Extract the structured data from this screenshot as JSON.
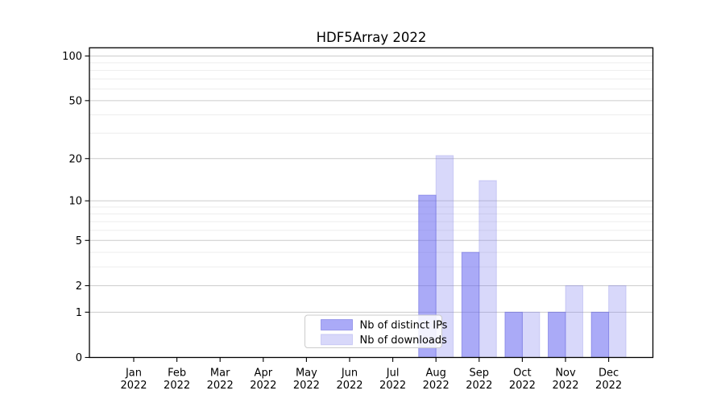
{
  "figure": {
    "background": "#ffffff"
  },
  "chart_data": {
    "type": "bar",
    "title": "HDF5Array 2022",
    "categories": [
      "Jan",
      "Feb",
      "Mar",
      "Apr",
      "May",
      "Jun",
      "Jul",
      "Aug",
      "Sep",
      "Oct",
      "Nov",
      "Dec"
    ],
    "x_tick_second_line": "2022",
    "series": [
      {
        "name": "Nb of distinct IPs",
        "values": [
          0,
          0,
          0,
          0,
          0,
          0,
          0,
          11,
          4,
          1,
          1,
          1
        ],
        "fill": "rgba(100,100,240,0.55)",
        "stroke": "rgba(85,85,215,0.45)"
      },
      {
        "name": "Nb of downloads",
        "values": [
          0,
          0,
          0,
          0,
          0,
          0,
          0,
          21,
          14,
          1,
          2,
          2
        ],
        "fill": "rgba(125,125,238,0.30)",
        "stroke": "rgba(110,110,225,0.25)"
      }
    ],
    "xlabel": "",
    "ylabel": "",
    "yscale": "log1p",
    "ylim": [
      0,
      113.5
    ],
    "yticks": [
      0,
      1,
      2,
      5,
      10,
      20,
      50,
      100
    ],
    "minor_yticks": [
      3,
      4,
      6,
      7,
      8,
      9,
      30,
      40,
      60,
      70,
      80,
      90
    ],
    "grid": true,
    "legend_position": "lower center"
  },
  "colors": {
    "major_grid": "#cccccc",
    "minor_grid": "#ededed",
    "axis": "#000000",
    "text": "#000000",
    "legend_border": "#cccccc",
    "legend_background": "rgba(255,255,255,0.85)"
  }
}
